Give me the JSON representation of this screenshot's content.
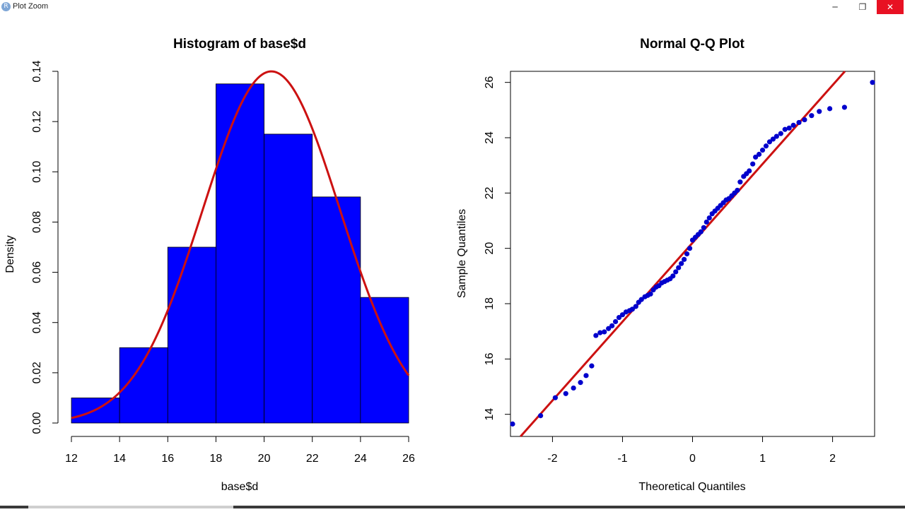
{
  "window": {
    "title": "Plot Zoom",
    "icon_name": "r-logo-icon",
    "minimize_glyph": "─",
    "restore_glyph": "❐",
    "close_glyph": "✕"
  },
  "chart_data": [
    {
      "type": "bar",
      "title": "Histogram of base$d",
      "xlabel": "base$d",
      "ylabel": "Density",
      "bin_edges": [
        12,
        14,
        16,
        18,
        20,
        22,
        24,
        26
      ],
      "values": [
        0.01,
        0.03,
        0.07,
        0.135,
        0.115,
        0.09,
        0.05
      ],
      "xlim": [
        12,
        26
      ],
      "ylim": [
        0,
        0.14
      ],
      "x_ticks": [
        "12",
        "14",
        "16",
        "18",
        "20",
        "22",
        "24",
        "26"
      ],
      "y_ticks": [
        "0.00",
        "0.02",
        "0.04",
        "0.06",
        "0.08",
        "0.10",
        "0.12",
        "0.14"
      ],
      "bar_color": "#0000ff",
      "density_curve": {
        "type": "line",
        "distribution": "normal",
        "mean": 20.3,
        "sd": 2.85,
        "color": "#cc1111"
      },
      "grid": false
    },
    {
      "type": "scatter",
      "title": "Normal Q-Q Plot",
      "xlabel": "Theoretical Quantiles",
      "ylabel": "Sample Quantiles",
      "xlim": [
        -2.6,
        2.6
      ],
      "ylim": [
        13.2,
        26.4
      ],
      "x_ticks": [
        "-2",
        "-1",
        "0",
        "1",
        "2"
      ],
      "y_ticks": [
        "14",
        "16",
        "18",
        "20",
        "22",
        "24",
        "26"
      ],
      "point_color": "#0000cc",
      "points": [
        [
          -2.57,
          13.65
        ],
        [
          -2.17,
          13.95
        ],
        [
          -1.96,
          14.6
        ],
        [
          -1.81,
          14.75
        ],
        [
          -1.7,
          14.95
        ],
        [
          -1.6,
          15.15
        ],
        [
          -1.52,
          15.4
        ],
        [
          -1.44,
          15.75
        ],
        [
          -1.38,
          16.85
        ],
        [
          -1.32,
          16.95
        ],
        [
          -1.26,
          16.98
        ],
        [
          -1.2,
          17.1
        ],
        [
          -1.15,
          17.2
        ],
        [
          -1.1,
          17.35
        ],
        [
          -1.05,
          17.5
        ],
        [
          -1.0,
          17.6
        ],
        [
          -0.95,
          17.7
        ],
        [
          -0.9,
          17.75
        ],
        [
          -0.86,
          17.8
        ],
        [
          -0.81,
          17.9
        ],
        [
          -0.77,
          18.05
        ],
        [
          -0.73,
          18.15
        ],
        [
          -0.68,
          18.25
        ],
        [
          -0.64,
          18.3
        ],
        [
          -0.6,
          18.35
        ],
        [
          -0.56,
          18.5
        ],
        [
          -0.52,
          18.6
        ],
        [
          -0.48,
          18.65
        ],
        [
          -0.44,
          18.75
        ],
        [
          -0.4,
          18.8
        ],
        [
          -0.36,
          18.85
        ],
        [
          -0.32,
          18.9
        ],
        [
          -0.28,
          19.0
        ],
        [
          -0.24,
          19.15
        ],
        [
          -0.2,
          19.3
        ],
        [
          -0.16,
          19.45
        ],
        [
          -0.12,
          19.6
        ],
        [
          -0.08,
          19.8
        ],
        [
          -0.04,
          20.0
        ],
        [
          0.0,
          20.3
        ],
        [
          0.04,
          20.4
        ],
        [
          0.08,
          20.5
        ],
        [
          0.12,
          20.6
        ],
        [
          0.16,
          20.75
        ],
        [
          0.2,
          20.95
        ],
        [
          0.24,
          21.1
        ],
        [
          0.28,
          21.25
        ],
        [
          0.32,
          21.35
        ],
        [
          0.36,
          21.45
        ],
        [
          0.4,
          21.55
        ],
        [
          0.44,
          21.65
        ],
        [
          0.48,
          21.75
        ],
        [
          0.52,
          21.8
        ],
        [
          0.56,
          21.9
        ],
        [
          0.6,
          22.0
        ],
        [
          0.64,
          22.1
        ],
        [
          0.68,
          22.4
        ],
        [
          0.73,
          22.6
        ],
        [
          0.77,
          22.7
        ],
        [
          0.81,
          22.8
        ],
        [
          0.86,
          23.05
        ],
        [
          0.9,
          23.3
        ],
        [
          0.95,
          23.4
        ],
        [
          1.0,
          23.55
        ],
        [
          1.05,
          23.7
        ],
        [
          1.1,
          23.85
        ],
        [
          1.15,
          23.95
        ],
        [
          1.2,
          24.05
        ],
        [
          1.26,
          24.15
        ],
        [
          1.32,
          24.3
        ],
        [
          1.38,
          24.35
        ],
        [
          1.44,
          24.45
        ],
        [
          1.52,
          24.55
        ],
        [
          1.6,
          24.65
        ],
        [
          1.7,
          24.8
        ],
        [
          1.81,
          24.95
        ],
        [
          1.96,
          25.05
        ],
        [
          2.17,
          25.1
        ],
        [
          2.57,
          26.0
        ]
      ],
      "reference_line": {
        "intercept": 20.2,
        "slope": 2.85,
        "color": "#cc1111"
      },
      "grid": false
    }
  ]
}
